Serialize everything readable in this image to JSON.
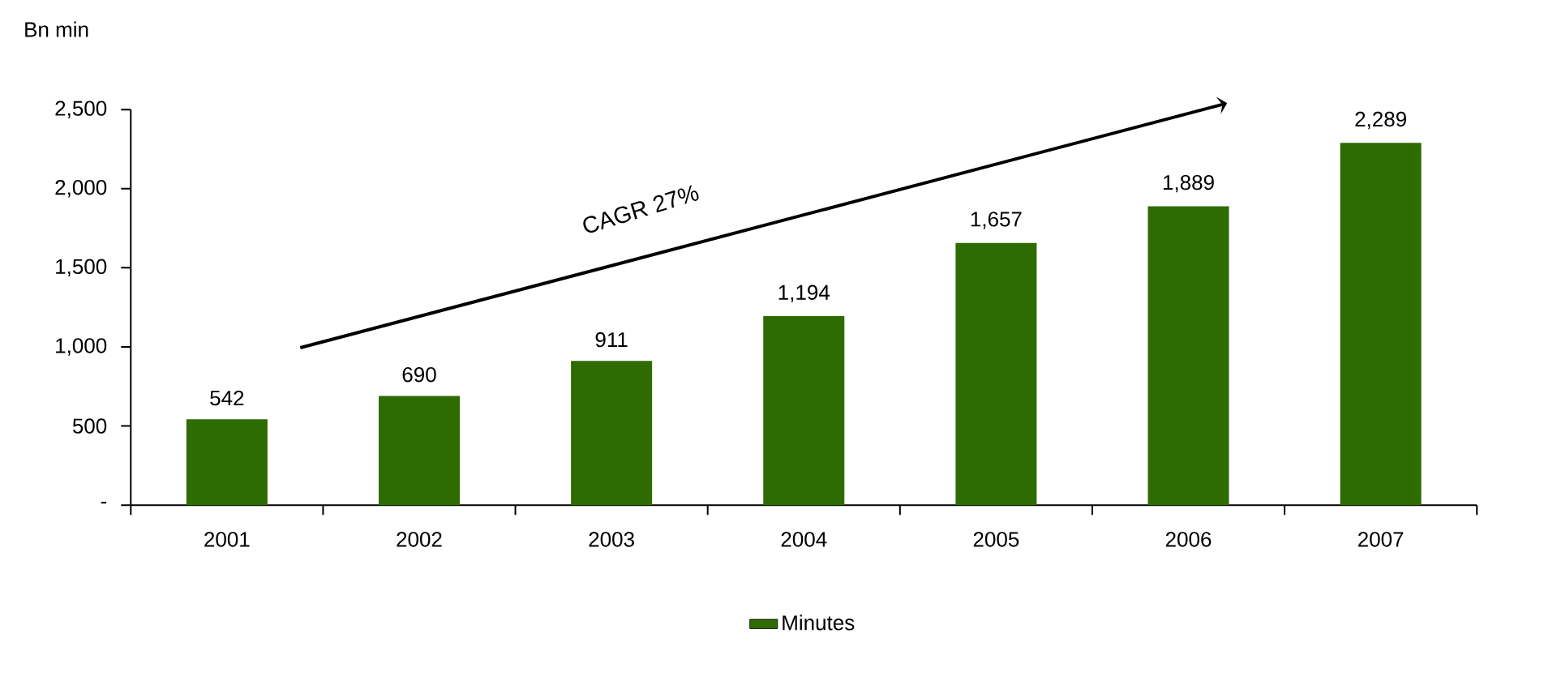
{
  "chart_data": {
    "type": "bar",
    "ylabel": "Bn min",
    "categories": [
      "2001",
      "2002",
      "2003",
      "2004",
      "2005",
      "2006",
      "2007"
    ],
    "series": [
      {
        "name": "Minutes",
        "color": "#2e6b00",
        "values": [
          542,
          690,
          911,
          1194,
          1657,
          1889,
          2289
        ],
        "value_labels": [
          "542",
          "690",
          "911",
          "1,194",
          "1,657",
          "1,889",
          "2,289"
        ]
      }
    ],
    "ylim": [
      0,
      2500
    ],
    "yticks": [
      {
        "value": 0,
        "label": "-"
      },
      500,
      {
        "value": 1000,
        "label": "1,000"
      },
      {
        "value": 1500,
        "label": "1,500"
      },
      {
        "value": 2000,
        "label": "2,000"
      },
      {
        "value": 2500,
        "label": "2,500"
      }
    ],
    "annotations": [
      "CAGR 27%"
    ],
    "legend": "bottom",
    "grid": false
  }
}
